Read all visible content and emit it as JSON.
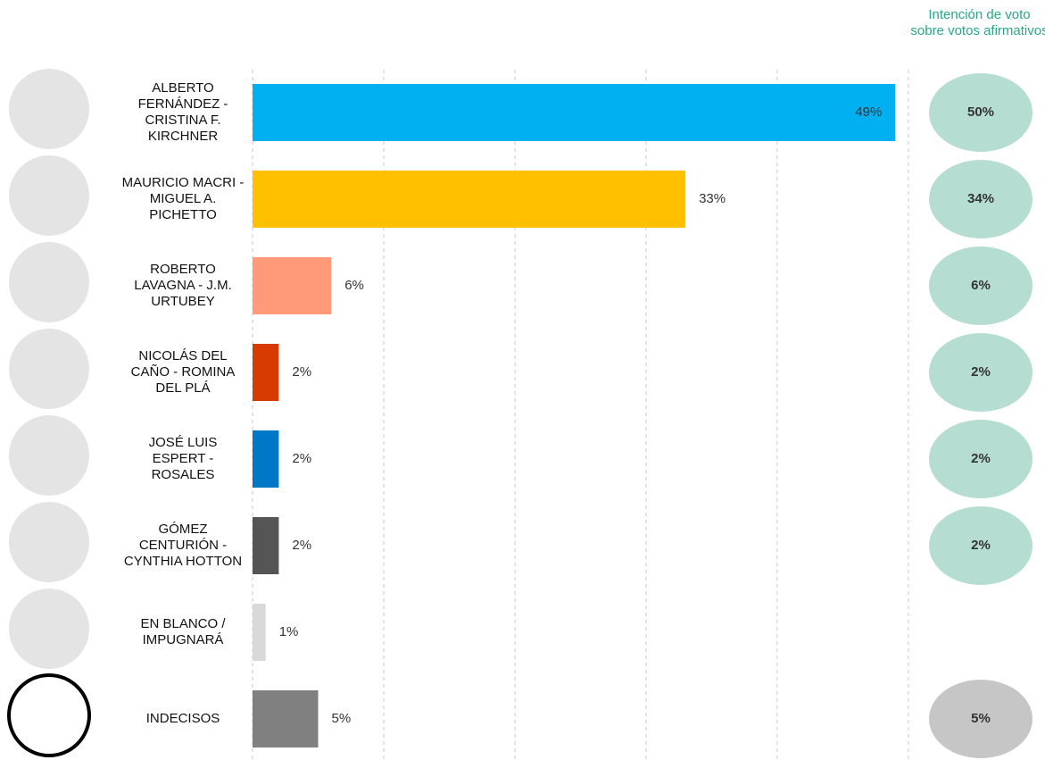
{
  "chart_data": {
    "type": "hbar",
    "categories": [
      "ALBERTO FERNÁNDEZ - CRISTINA F. KIRCHNER",
      "MAURICIO MACRI - MIGUEL A. PICHETTO",
      "ROBERTO LAVAGNA - J.M. URTUBEY",
      "NICOLÁS DEL CAÑO - ROMINA DEL PLÁ",
      "JOSÉ LUIS ESPERT - ROSALES",
      "GÓMEZ CENTURIÓN - CYNTHIA HOTTON",
      "EN BLANCO / IMPUGNARÁ",
      "INDECISOS"
    ],
    "values": [
      49,
      33,
      6,
      2,
      2,
      2,
      1,
      5
    ],
    "value_labels": [
      "49%",
      "33%",
      "6%",
      "2%",
      "2%",
      "2%",
      "1%",
      "5%"
    ],
    "colors": [
      "#00b0f0",
      "#ffc000",
      "#ff9977",
      "#d83b01",
      "#0078c8",
      "#555555",
      "#d9d9d9",
      "#808080"
    ],
    "xlim": [
      0,
      50
    ],
    "xticks": [
      0,
      10,
      20,
      30,
      40,
      50
    ],
    "grid": true,
    "affirmative": {
      "title": "Intención de voto sobre votos afirmativos",
      "values": [
        50,
        34,
        6,
        2,
        2,
        2,
        null,
        5
      ],
      "value_labels": [
        "50%",
        "34%",
        "6%",
        "2%",
        "2%",
        "2%",
        null,
        "5%"
      ],
      "colors": [
        "#b5ddd2",
        "#b5ddd2",
        "#b5ddd2",
        "#b5ddd2",
        "#b5ddd2",
        "#b5ddd2",
        null,
        "#c6c6c6"
      ]
    }
  }
}
